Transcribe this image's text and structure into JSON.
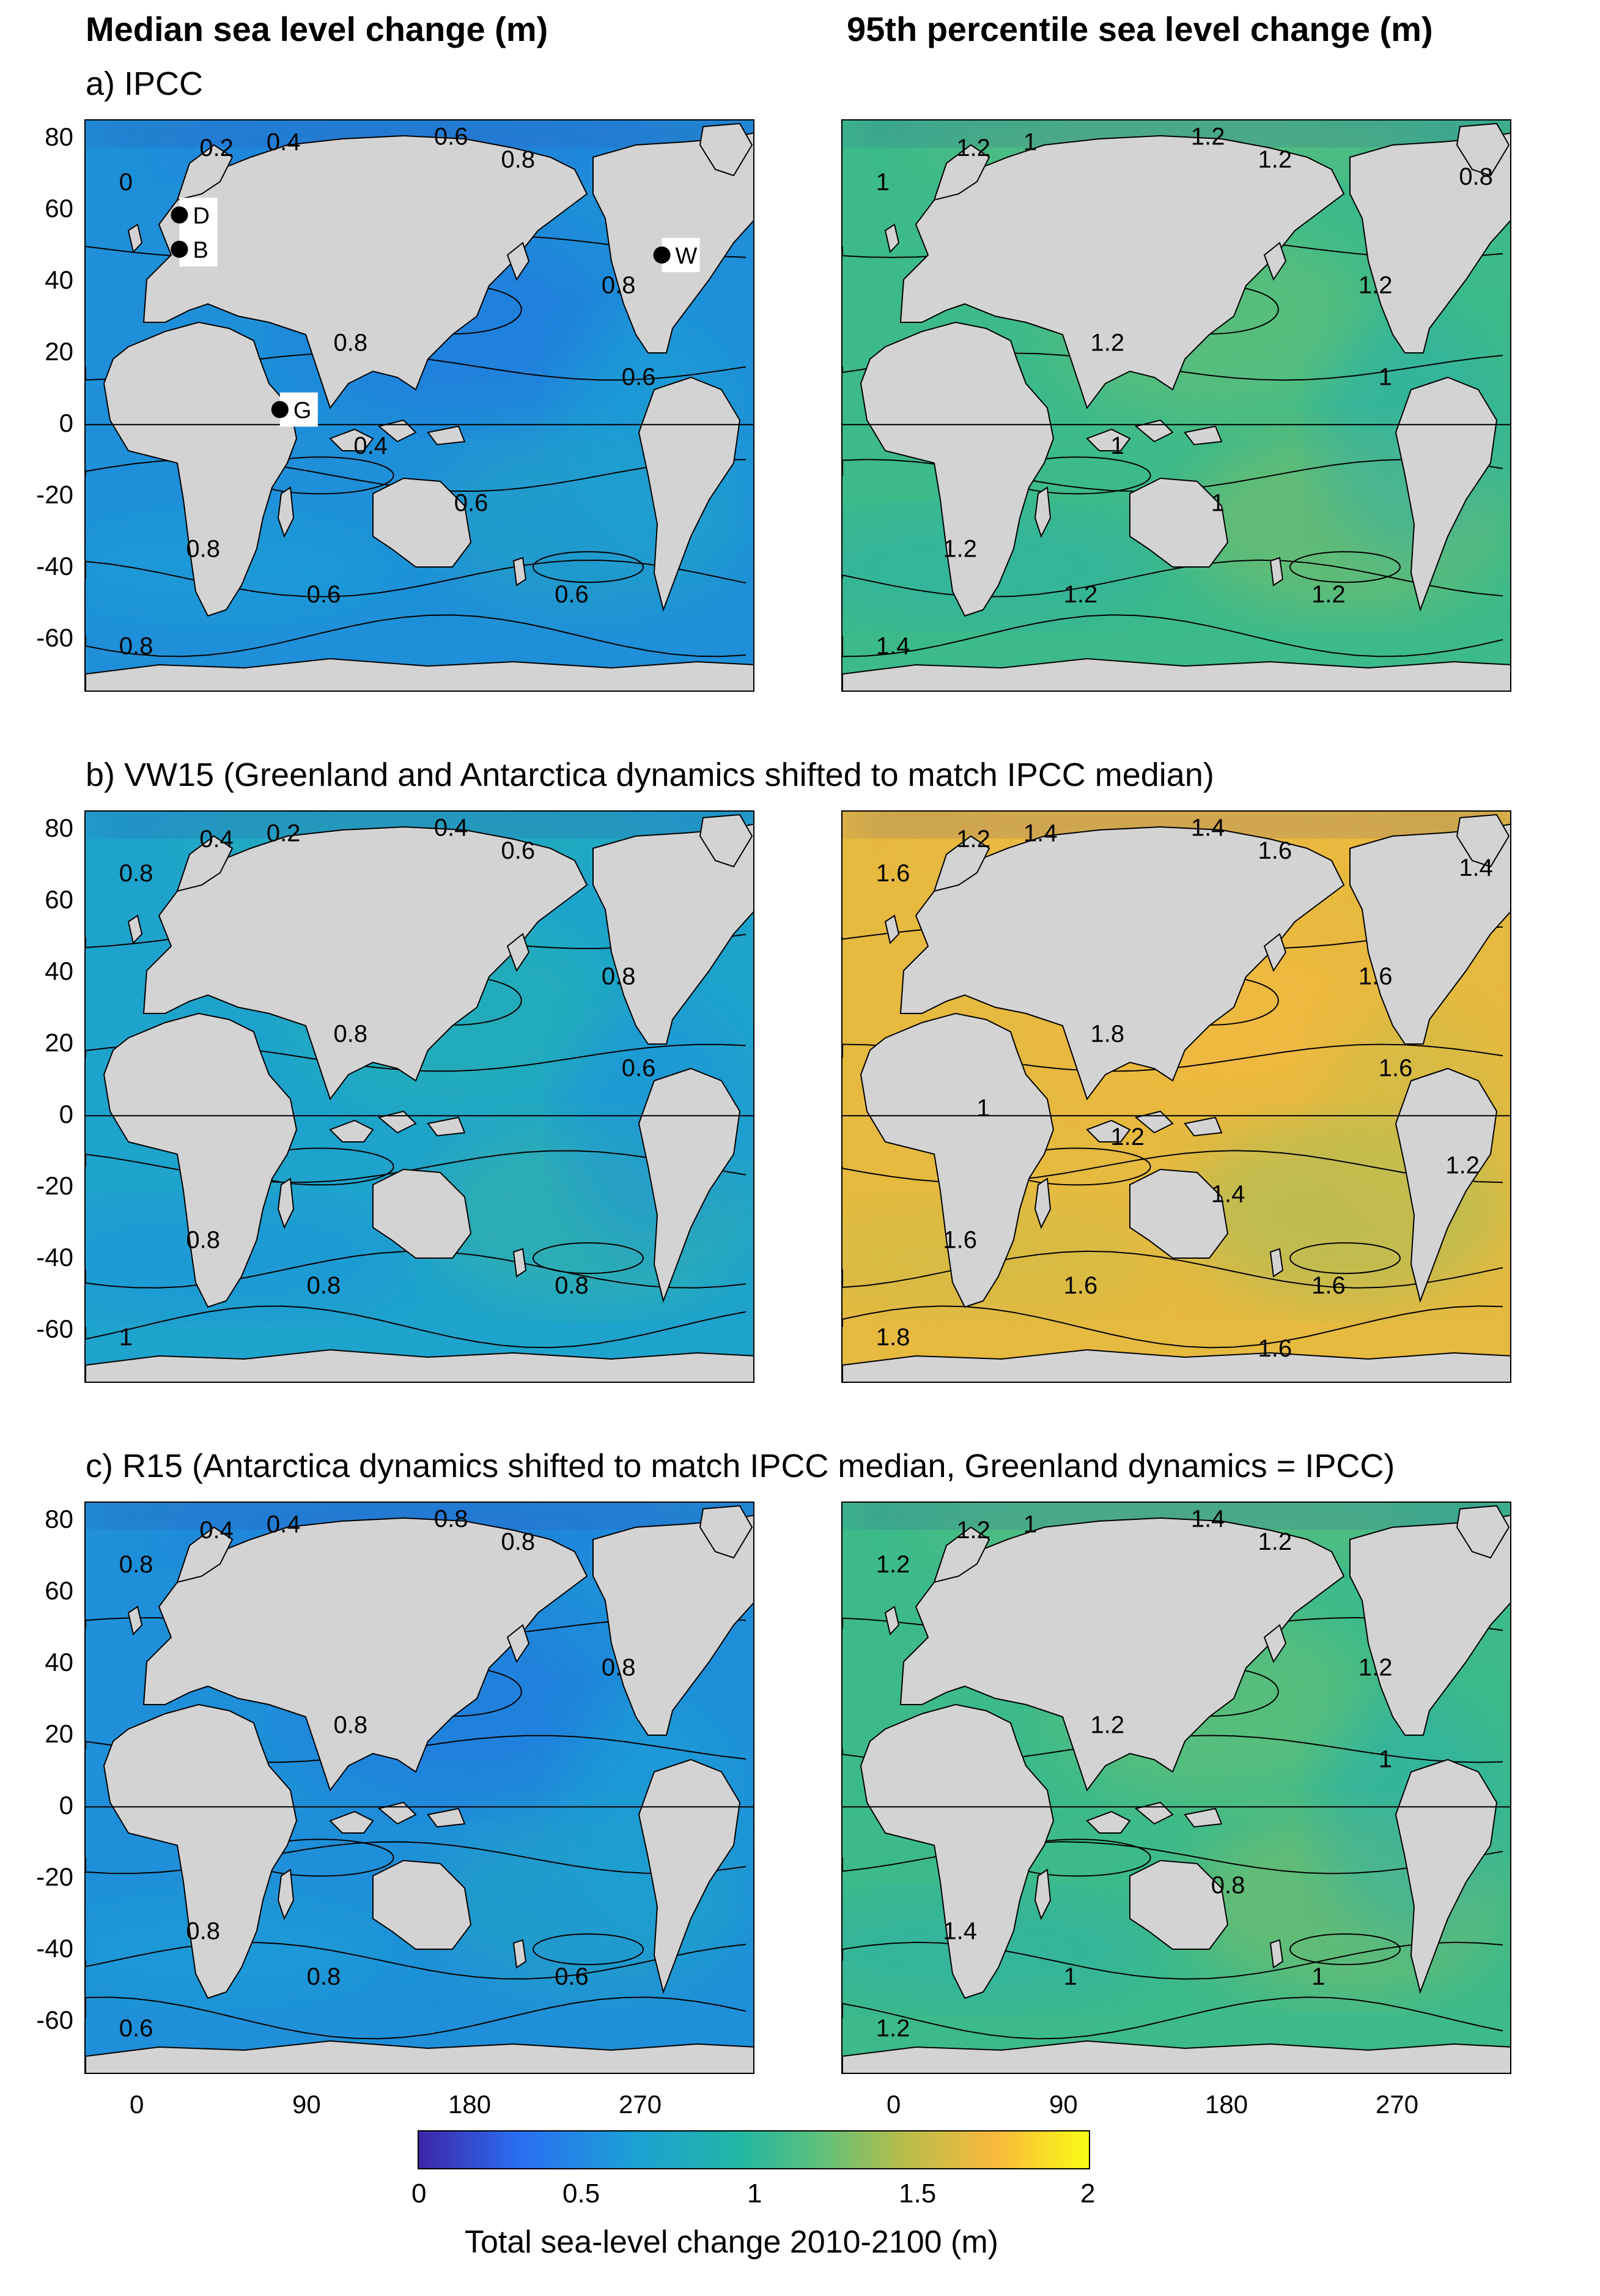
{
  "headers": {
    "left": "Median sea level change (m)",
    "right": "95th percentile sea level change (m)"
  },
  "rows": [
    {
      "id": "a",
      "title": "a) IPCC"
    },
    {
      "id": "b",
      "title": "b) VW15 (Greenland and Antarctica dynamics shifted to match IPCC median)"
    },
    {
      "id": "c",
      "title": "c) R15 (Antarctica dynamics shifted to match IPCC median, Greenland dynamics = IPCC)"
    }
  ],
  "axes": {
    "y_ticks": [
      "80",
      "60",
      "40",
      "20",
      "0",
      "-20",
      "-40",
      "-60"
    ],
    "x_ticks": [
      "0",
      "90",
      "180",
      "270"
    ]
  },
  "sites": [
    {
      "label": "D"
    },
    {
      "label": "B"
    },
    {
      "label": "W"
    },
    {
      "label": "G"
    }
  ],
  "panels": {
    "a_median": {
      "contours": [
        "0.4",
        "0.2",
        "0",
        "0.6",
        "0.8",
        "0.8",
        "0.8",
        "0.8",
        "0.6",
        "0.8",
        "0.6",
        "0.6",
        "0.6",
        "0.4"
      ]
    },
    "a_p95": {
      "contours": [
        "1",
        "1.2",
        "1",
        "1.2",
        "1.2",
        "1.2",
        "1.2",
        "1.2",
        "1.2",
        "1.4",
        "1.2",
        "1",
        "1",
        "1",
        "0.8"
      ]
    },
    "b_median": {
      "contours": [
        "0.2",
        "0.4",
        "0.8",
        "0.4",
        "0.6",
        "0.8",
        "0.8",
        "0.8",
        "0.8",
        "1",
        "0.8",
        "0.6"
      ]
    },
    "b_p95": {
      "contours": [
        "1.4",
        "1.2",
        "1.6",
        "1.4",
        "1.6",
        "1.8",
        "1.6",
        "1.6",
        "1.6",
        "1.8",
        "1.6",
        "1.6",
        "1.4",
        "1.2",
        "1.4",
        "1.2",
        "1",
        "1.6"
      ]
    },
    "c_median": {
      "contours": [
        "0.4",
        "0.4",
        "0.8",
        "0.8",
        "0.8",
        "0.8",
        "0.8",
        "0.8",
        "0.8",
        "0.6",
        "0.6"
      ]
    },
    "c_p95": {
      "contours": [
        "1",
        "1.2",
        "1.2",
        "1.4",
        "1.2",
        "1.2",
        "1.2",
        "1.4",
        "1",
        "1.2",
        "1",
        "1",
        "0.8"
      ]
    }
  },
  "colorbar": {
    "ticks": [
      "0",
      "0.5",
      "1",
      "1.5",
      "2"
    ],
    "label": "Total sea-level change 2010-2100 (m)",
    "colors": [
      "#3e26a8",
      "#2a6ef2",
      "#1ca0d6",
      "#22b7a2",
      "#5fc07a",
      "#b5bd4a",
      "#f9b83d",
      "#f9fb15"
    ]
  },
  "land_color": "#d3d3d3"
}
